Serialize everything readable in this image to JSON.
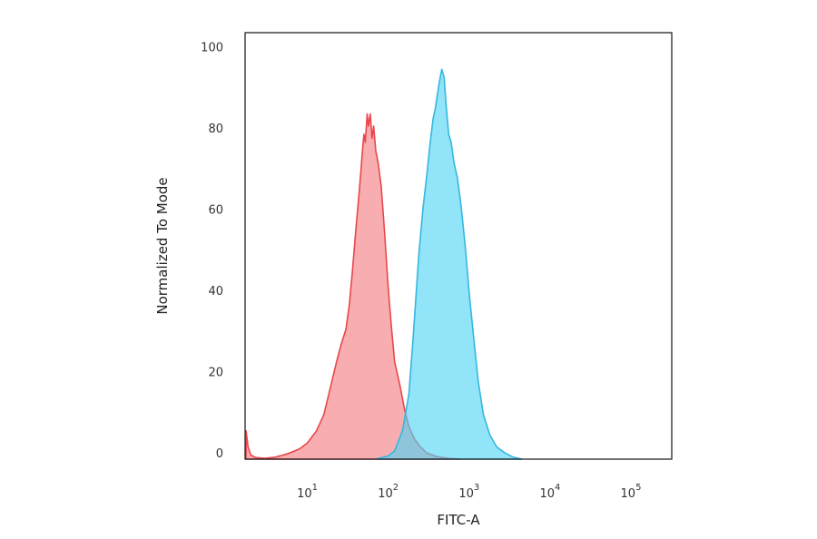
{
  "chart_data": {
    "type": "area",
    "title": "",
    "xlabel": "FITC-A",
    "ylabel": "Normalized To Mode",
    "x_scale": "log",
    "xlim": [
      1.7,
      320000
    ],
    "ylim": [
      0,
      105
    ],
    "grid": false,
    "legend": "none",
    "x_ticks": [
      {
        "value": 10,
        "base": "10",
        "exp": "1"
      },
      {
        "value": 100,
        "base": "10",
        "exp": "2"
      },
      {
        "value": 1000,
        "base": "10",
        "exp": "3"
      },
      {
        "value": 10000,
        "base": "10",
        "exp": "4"
      },
      {
        "value": 100000,
        "base": "10",
        "exp": "5"
      }
    ],
    "y_ticks": [
      "0",
      "20",
      "40",
      "60",
      "80",
      "100"
    ],
    "series": [
      {
        "color": "#e8474c",
        "fill": "#f47a80",
        "fill_opacity": 0.62,
        "points": [
          [
            1.75,
            7
          ],
          [
            1.85,
            3
          ],
          [
            2.0,
            1
          ],
          [
            2.3,
            0.4
          ],
          [
            3,
            0.2
          ],
          [
            4,
            0.5
          ],
          [
            5,
            1
          ],
          [
            6,
            1.5
          ],
          [
            8,
            2.5
          ],
          [
            10,
            4
          ],
          [
            13,
            7
          ],
          [
            16,
            11
          ],
          [
            20,
            19
          ],
          [
            23,
            24
          ],
          [
            26,
            28
          ],
          [
            30,
            32
          ],
          [
            33,
            38
          ],
          [
            36,
            46
          ],
          [
            40,
            57
          ],
          [
            43,
            64
          ],
          [
            46,
            71
          ],
          [
            48,
            76
          ],
          [
            50,
            80
          ],
          [
            52,
            78
          ],
          [
            55,
            85
          ],
          [
            57,
            82
          ],
          [
            60,
            85
          ],
          [
            63,
            79
          ],
          [
            66,
            82
          ],
          [
            70,
            76
          ],
          [
            75,
            73
          ],
          [
            82,
            67
          ],
          [
            90,
            56
          ],
          [
            100,
            42
          ],
          [
            110,
            32
          ],
          [
            120,
            24
          ],
          [
            140,
            18
          ],
          [
            160,
            12
          ],
          [
            180,
            8
          ],
          [
            210,
            5
          ],
          [
            250,
            3
          ],
          [
            300,
            1.5
          ],
          [
            400,
            0.6
          ],
          [
            550,
            0.2
          ],
          [
            800,
            0
          ]
        ]
      },
      {
        "color": "#34b7e0",
        "fill": "#4fd4f4",
        "fill_opacity": 0.62,
        "points": [
          [
            70,
            0
          ],
          [
            100,
            0.8
          ],
          [
            120,
            2
          ],
          [
            150,
            7
          ],
          [
            180,
            16
          ],
          [
            200,
            28
          ],
          [
            220,
            40
          ],
          [
            240,
            51
          ],
          [
            270,
            62
          ],
          [
            300,
            70
          ],
          [
            330,
            78
          ],
          [
            360,
            84
          ],
          [
            380,
            86
          ],
          [
            400,
            89
          ],
          [
            430,
            93
          ],
          [
            460,
            96
          ],
          [
            490,
            94
          ],
          [
            520,
            87
          ],
          [
            560,
            80
          ],
          [
            600,
            78
          ],
          [
            650,
            73
          ],
          [
            720,
            69
          ],
          [
            800,
            62
          ],
          [
            900,
            52
          ],
          [
            1000,
            41
          ],
          [
            1150,
            29
          ],
          [
            1300,
            19
          ],
          [
            1500,
            11
          ],
          [
            1800,
            6
          ],
          [
            2200,
            3
          ],
          [
            2800,
            1.5
          ],
          [
            3500,
            0.5
          ],
          [
            4500,
            0
          ]
        ]
      }
    ]
  }
}
